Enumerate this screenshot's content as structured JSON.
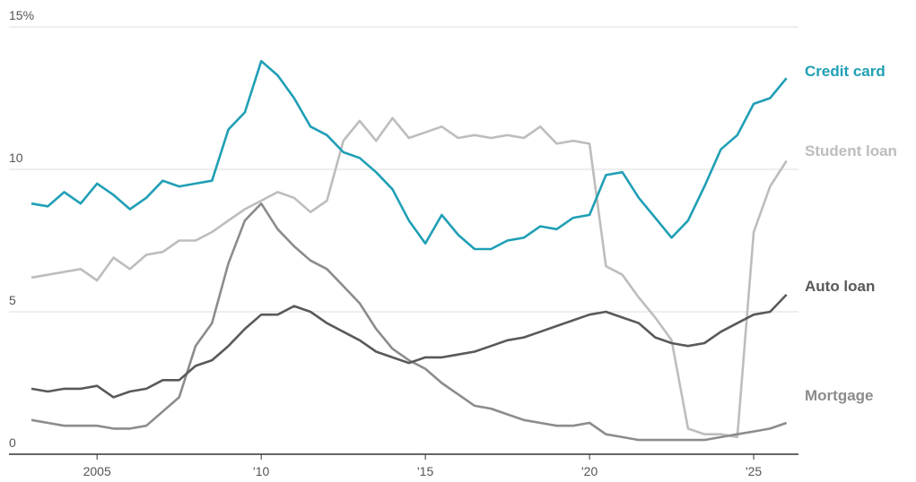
{
  "chart_data": {
    "type": "line",
    "x": [
      2003,
      2003.5,
      2004,
      2004.5,
      2005,
      2005.5,
      2006,
      2006.5,
      2007,
      2007.5,
      2008,
      2008.5,
      2009,
      2009.5,
      2010,
      2010.5,
      2011,
      2011.5,
      2012,
      2012.5,
      2013,
      2013.5,
      2014,
      2014.5,
      2015,
      2015.5,
      2016,
      2016.5,
      2017,
      2017.5,
      2018,
      2018.5,
      2019,
      2019.5,
      2020,
      2020.5,
      2021,
      2021.5,
      2022,
      2022.5,
      2023,
      2023.5,
      2024,
      2024.5,
      2025,
      2025.5,
      2026
    ],
    "series": [
      {
        "name": "Credit card",
        "color": "#1f9fb5",
        "values": [
          8.8,
          8.7,
          9.2,
          8.8,
          9.5,
          9.1,
          8.6,
          9.0,
          9.6,
          9.4,
          9.5,
          9.6,
          11.4,
          12.0,
          13.8,
          13.3,
          12.5,
          11.5,
          11.2,
          10.6,
          10.4,
          9.9,
          9.3,
          8.2,
          7.4,
          8.4,
          7.7,
          7.2,
          7.2,
          7.5,
          7.6,
          8.0,
          7.9,
          8.3,
          8.4,
          9.8,
          9.9,
          9.0,
          8.3,
          7.6,
          8.2,
          9.4,
          10.7,
          11.2,
          12.3,
          12.5,
          13.2
        ]
      },
      {
        "name": "Student loan",
        "color": "#bdbdbd",
        "values": [
          6.2,
          6.3,
          6.4,
          6.5,
          6.1,
          6.9,
          6.5,
          7.0,
          7.1,
          7.5,
          7.5,
          7.8,
          8.2,
          8.6,
          8.9,
          9.2,
          9.0,
          8.5,
          8.9,
          11.0,
          11.7,
          11.0,
          11.8,
          11.1,
          11.3,
          11.5,
          11.1,
          11.2,
          11.1,
          11.2,
          11.1,
          11.5,
          10.9,
          11.0,
          10.9,
          6.6,
          6.3,
          5.5,
          4.8,
          4.0,
          0.9,
          0.7,
          0.7,
          0.6,
          7.8,
          9.4,
          10.3
        ]
      },
      {
        "name": "Auto loan",
        "color": "#595959",
        "values": [
          2.3,
          2.2,
          2.3,
          2.3,
          2.4,
          2.0,
          2.2,
          2.3,
          2.6,
          2.6,
          3.1,
          3.3,
          3.8,
          4.4,
          4.9,
          4.9,
          5.2,
          5.0,
          4.6,
          4.3,
          4.0,
          3.6,
          3.4,
          3.2,
          3.4,
          3.4,
          3.5,
          3.6,
          3.8,
          4.0,
          4.1,
          4.3,
          4.5,
          4.7,
          4.9,
          5.0,
          4.8,
          4.6,
          4.1,
          3.9,
          3.8,
          3.9,
          4.3,
          4.6,
          4.9,
          5.0,
          5.6
        ]
      },
      {
        "name": "Mortgage",
        "color": "#8c8c8c",
        "values": [
          1.2,
          1.1,
          1.0,
          1.0,
          1.0,
          0.9,
          0.9,
          1.0,
          1.5,
          2.0,
          3.8,
          4.6,
          6.7,
          8.2,
          8.8,
          7.9,
          7.3,
          6.8,
          6.5,
          5.9,
          5.3,
          4.4,
          3.7,
          3.3,
          3.0,
          2.5,
          2.1,
          1.7,
          1.6,
          1.4,
          1.2,
          1.1,
          1.0,
          1.0,
          1.1,
          0.7,
          0.6,
          0.5,
          0.5,
          0.5,
          0.5,
          0.5,
          0.6,
          0.7,
          0.8,
          0.9,
          1.1
        ]
      }
    ],
    "xlim": [
      2003,
      2026.2
    ],
    "xticks": [
      2005,
      {
        "value": 2010,
        "label": "'10"
      },
      {
        "value": 2015,
        "label": "'15"
      },
      {
        "value": 2020,
        "label": "'20"
      },
      {
        "value": 2025,
        "label": "'25"
      }
    ],
    "ylim": [
      0,
      15
    ],
    "yticks": [
      0,
      5,
      10,
      {
        "value": 15,
        "label": "15%"
      }
    ],
    "grid": true
  }
}
